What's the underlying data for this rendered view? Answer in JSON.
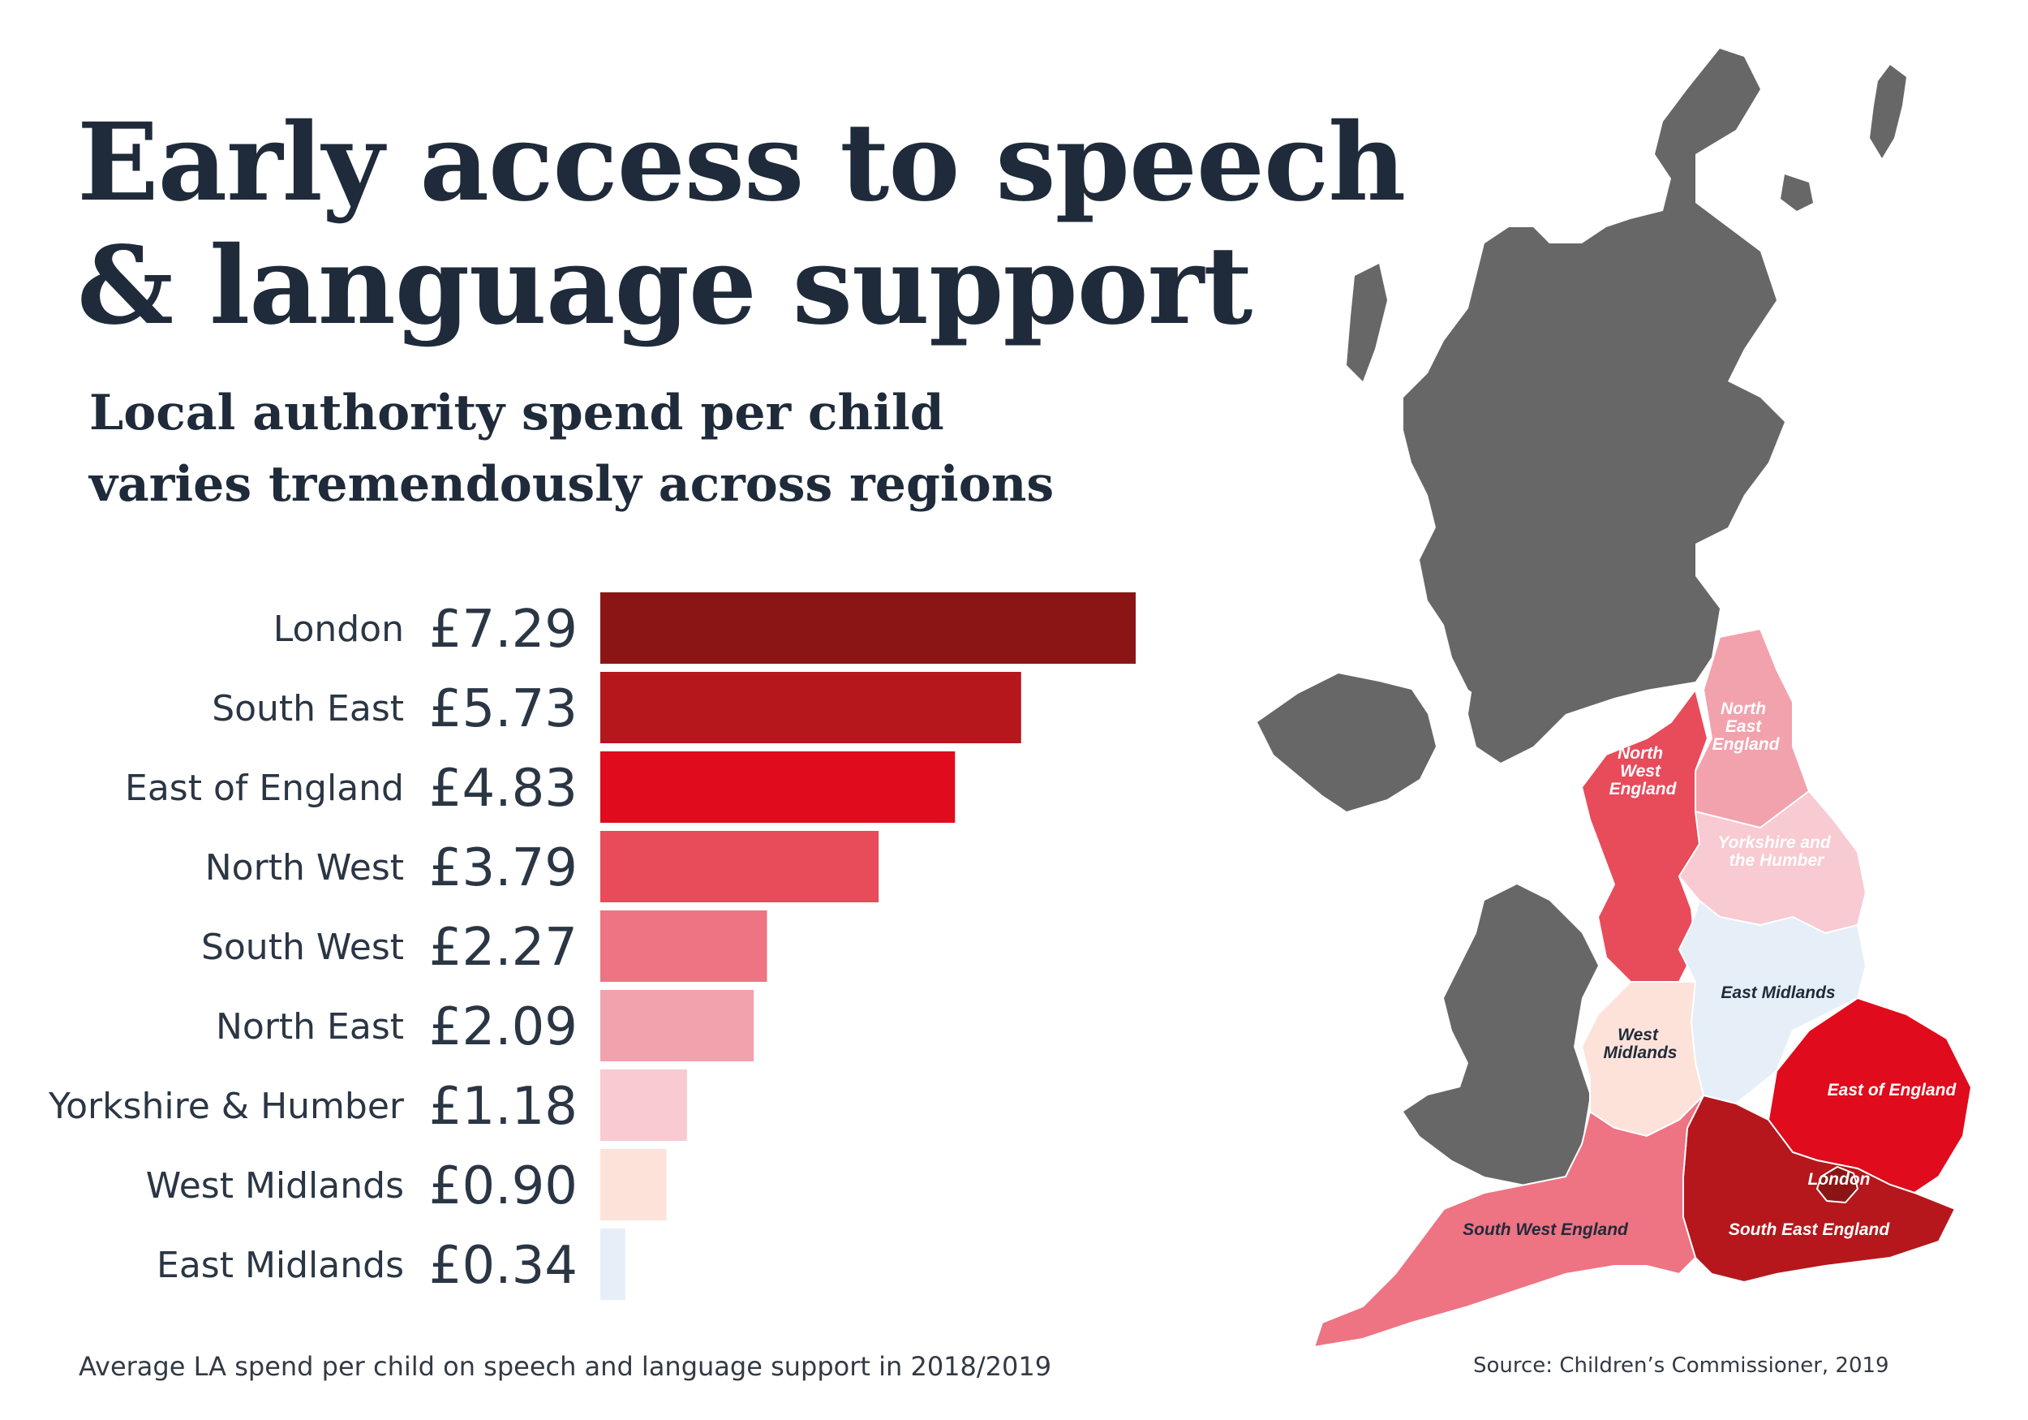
{
  "header": {
    "title_line1": "Early access to speech",
    "title_line2": "& language support",
    "subtitle_line1": "Local authority spend per child",
    "subtitle_line2": "varies tremendously across regions"
  },
  "footer": {
    "note": "Average LA spend per child on speech and language support in 2018/2019",
    "source": "Source: Children’s Commissioner, 2019"
  },
  "chart_data": {
    "type": "bar",
    "orientation": "horizontal",
    "categories": [
      "London",
      "South East",
      "East of England",
      "North West",
      "South West",
      "North East",
      "Yorkshire & Humber",
      "West Midlands",
      "East Midlands"
    ],
    "values": [
      7.29,
      5.73,
      4.83,
      3.79,
      2.27,
      2.09,
      1.18,
      0.9,
      0.34
    ],
    "value_labels": [
      "£7.29",
      "£5.73",
      "£4.83",
      "£3.79",
      "£2.27",
      "£2.09",
      "£1.18",
      "£0.90",
      "£0.34"
    ],
    "colors": [
      "#8b1515",
      "#b5171c",
      "#e00b1c",
      "#e84b5a",
      "#ee7383",
      "#f2a2ad",
      "#f8cad1",
      "#fde2da",
      "#e6eef7"
    ],
    "xlim": [
      0,
      7.29
    ],
    "grid": false,
    "legend": "none"
  },
  "map": {
    "labels": {
      "north_east": [
        "North",
        "East",
        "England"
      ],
      "north_west": [
        "North",
        "West",
        "England"
      ],
      "yorkshire": [
        "Yorkshire and",
        "the Humber"
      ],
      "east_midlands": "East Midlands",
      "west_midlands": [
        "West",
        "Midlands"
      ],
      "east_of_england": "East of England",
      "london": "London",
      "south_east": "South East England",
      "south_west": "South West England"
    },
    "colors": {
      "uk_other": "#676767",
      "london": "#8b1515",
      "south_east": "#b5171c",
      "east_of_england": "#e00b1c",
      "north_west": "#e84b5a",
      "south_west": "#ee7383",
      "north_east": "#f2a2ad",
      "yorkshire": "#f8cad1",
      "west_midlands": "#fde2da",
      "east_midlands": "#e6eef7"
    }
  }
}
